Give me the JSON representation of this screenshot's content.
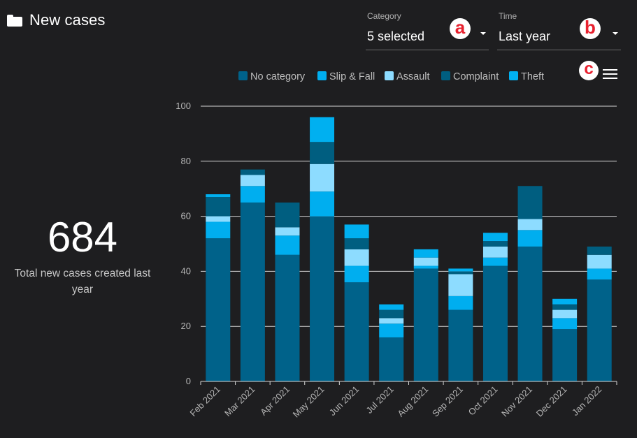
{
  "header": {
    "title": "New cases",
    "icon": "folder-icon"
  },
  "filters": {
    "category": {
      "label": "Category",
      "value": "5 selected"
    },
    "time": {
      "label": "Time",
      "value": "Last year"
    }
  },
  "annotations": {
    "a": "a",
    "b": "b",
    "c": "c"
  },
  "kpi": {
    "value": "684",
    "label": "Total new cases created last year"
  },
  "chart_data": {
    "type": "bar",
    "stacked": true,
    "categories": [
      "Feb 2021",
      "Mar 2021",
      "Apr 2021",
      "May 2021",
      "Jun 2021",
      "Jul 2021",
      "Aug 2021",
      "Sep 2021",
      "Oct 2021",
      "Nov 2021",
      "Dec 2021",
      "Jan 2022"
    ],
    "series": [
      {
        "name": "No category",
        "color": "#00628a",
        "values": [
          52,
          65,
          46,
          60,
          36,
          16,
          41,
          26,
          42,
          49,
          19,
          37
        ]
      },
      {
        "name": "Slip & Fall",
        "color": "#00aeef",
        "values": [
          6,
          6,
          7,
          9,
          6,
          5,
          1,
          5,
          3,
          6,
          4,
          4
        ]
      },
      {
        "name": "Assault",
        "color": "#8ddcff",
        "values": [
          2,
          4,
          3,
          10,
          6,
          2,
          3,
          8,
          4,
          4,
          3,
          5
        ]
      },
      {
        "name": "Complaint",
        "color": "#005e80",
        "values": [
          7,
          2,
          9,
          8,
          4,
          3,
          0,
          1,
          2,
          12,
          2,
          3
        ]
      },
      {
        "name": "Theft",
        "color": "#00b0f0",
        "values": [
          1,
          0,
          0,
          9,
          5,
          2,
          3,
          1,
          3,
          0,
          2,
          0
        ]
      }
    ],
    "ylim": [
      0,
      100
    ],
    "yticks": [
      0,
      20,
      40,
      60,
      80,
      100
    ],
    "grid": true,
    "legend_position": "top"
  }
}
